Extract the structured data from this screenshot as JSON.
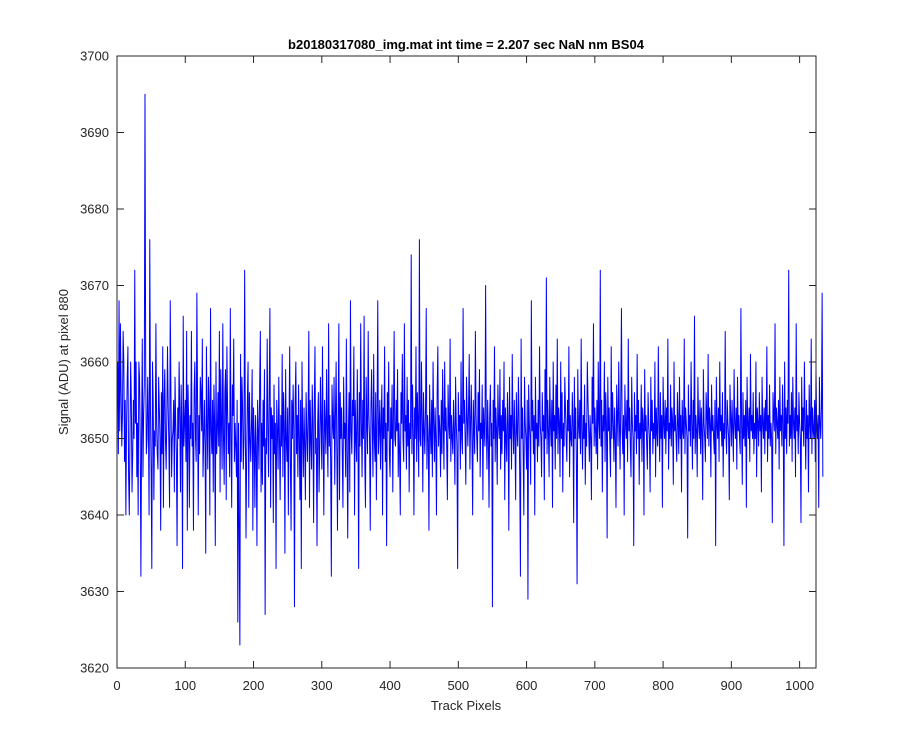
{
  "chart_data": {
    "type": "line",
    "title": "b20180317080_img.mat int time = 2.207 sec  NaN nm BS04",
    "xlabel": "Track Pixels",
    "ylabel": "Signal (ADU) at pixel 880",
    "xlim": [
      0,
      1024
    ],
    "ylim": [
      3620,
      3700
    ],
    "xticks": [
      0,
      100,
      200,
      300,
      400,
      500,
      600,
      700,
      800,
      900,
      1000
    ],
    "yticks": [
      3620,
      3630,
      3640,
      3650,
      3660,
      3670,
      3680,
      3690,
      3700
    ],
    "grid": false,
    "legend": "none",
    "series": [
      {
        "color": "#0000ff",
        "x_start": 1,
        "x_step": 1,
        "values": [
          3660,
          3648,
          3668,
          3651,
          3665,
          3656,
          3649,
          3653,
          3664,
          3660,
          3647,
          3655,
          3640,
          3652,
          3658,
          3662,
          3645,
          3640,
          3650,
          3660,
          3655,
          3643,
          3648,
          3655,
          3650,
          3672,
          3652,
          3660,
          3645,
          3652,
          3640,
          3660,
          3658,
          3650,
          3632,
          3650,
          3663,
          3645,
          3653,
          3657,
          3695,
          3660,
          3648,
          3650,
          3658,
          3652,
          3640,
          3676,
          3654,
          3646,
          3633,
          3660,
          3655,
          3642,
          3651,
          3649,
          3665,
          3652,
          3648,
          3646,
          3658,
          3654,
          3650,
          3638,
          3656,
          3648,
          3662,
          3641,
          3655,
          3659,
          3650,
          3646,
          3653,
          3662,
          3654,
          3649,
          3641,
          3668,
          3656,
          3645,
          3650,
          3651,
          3655,
          3643,
          3658,
          3652,
          3648,
          3636,
          3654,
          3650,
          3660,
          3653,
          3643,
          3657,
          3651,
          3633,
          3666,
          3649,
          3652,
          3655,
          3647,
          3664,
          3638,
          3657,
          3652,
          3641,
          3653,
          3650,
          3664,
          3649,
          3652,
          3638,
          3656,
          3660,
          3650,
          3647,
          3669,
          3655,
          3640,
          3653,
          3648,
          3658,
          3656,
          3651,
          3663,
          3645,
          3650,
          3655,
          3649,
          3635,
          3662,
          3652,
          3646,
          3658,
          3654,
          3640,
          3667,
          3651,
          3648,
          3655,
          3643,
          3657,
          3652,
          3636,
          3660,
          3648,
          3651,
          3656,
          3649,
          3664,
          3643,
          3659,
          3652,
          3646,
          3665,
          3650,
          3644,
          3656,
          3659,
          3642,
          3662,
          3654,
          3648,
          3652,
          3645,
          3667,
          3650,
          3641,
          3657,
          3653,
          3663,
          3647,
          3652,
          3649,
          3645,
          3655,
          3626,
          3652,
          3638,
          3623,
          3661,
          3647,
          3658,
          3654,
          3646,
          3650,
          3672,
          3652,
          3637,
          3648,
          3655,
          3660,
          3641,
          3656,
          3650,
          3647,
          3652,
          3659,
          3638,
          3654,
          3650,
          3641,
          3653,
          3649,
          3636,
          3655,
          3651,
          3646,
          3657,
          3664,
          3643,
          3652,
          3644,
          3655,
          3649,
          3659,
          3627,
          3650,
          3648,
          3663,
          3651,
          3645,
          3656,
          3667,
          3641,
          3654,
          3650,
          3653,
          3639,
          3657,
          3648,
          3652,
          3633,
          3655,
          3651,
          3646,
          3658,
          3650,
          3642,
          3653,
          3649,
          3661,
          3645,
          3656,
          3652,
          3635,
          3659,
          3650,
          3647,
          3654,
          3640,
          3652,
          3662,
          3647,
          3638,
          3655,
          3650,
          3657,
          3651,
          3628,
          3655,
          3660,
          3648,
          3653,
          3645,
          3657,
          3650,
          3642,
          3655,
          3633,
          3660,
          3651,
          3645,
          3654,
          3649,
          3642,
          3656,
          3651,
          3647,
          3653,
          3664,
          3641,
          3655,
          3650,
          3646,
          3657,
          3652,
          3639,
          3654,
          3662,
          3648,
          3650,
          3636,
          3652,
          3656,
          3643,
          3649,
          3658,
          3652,
          3646,
          3662,
          3650,
          3640,
          3655,
          3652,
          3648,
          3659,
          3651,
          3645,
          3665,
          3649,
          3653,
          3647,
          3632,
          3657,
          3652,
          3650,
          3658,
          3644,
          3653,
          3660,
          3649,
          3638,
          3653,
          3665,
          3642,
          3656,
          3650,
          3654,
          3648,
          3641,
          3658,
          3650,
          3652,
          3645,
          3663,
          3649,
          3637,
          3651,
          3656,
          3643,
          3668,
          3651,
          3648,
          3655,
          3653,
          3662,
          3640,
          3655,
          3650,
          3647,
          3659,
          3651,
          3633,
          3656,
          3649,
          3665,
          3652,
          3645,
          3655,
          3650,
          3666,
          3647,
          3641,
          3658,
          3652,
          3648,
          3664,
          3653,
          3650,
          3638,
          3654,
          3659,
          3651,
          3645,
          3661,
          3650,
          3647,
          3656,
          3642,
          3653,
          3668,
          3648,
          3651,
          3655,
          3646,
          3652,
          3657,
          3640,
          3654,
          3650,
          3662,
          3647,
          3652,
          3636,
          3656,
          3651,
          3660,
          3648,
          3645,
          3654,
          3650,
          3657,
          3643,
          3653,
          3664,
          3650,
          3649,
          3655,
          3651,
          3659,
          3645,
          3652,
          3648,
          3640,
          3656,
          3652,
          3661,
          3650,
          3647,
          3665,
          3651,
          3653,
          3646,
          3658,
          3649,
          3655,
          3643,
          3652,
          3650,
          3674,
          3648,
          3657,
          3651,
          3640,
          3654,
          3650,
          3662,
          3647,
          3656,
          3652,
          3645,
          3676,
          3650,
          3649,
          3660,
          3653,
          3643,
          3656,
          3651,
          3648,
          3654,
          3667,
          3646,
          3653,
          3650,
          3638,
          3657,
          3651,
          3648,
          3655,
          3645,
          3660,
          3652,
          3647,
          3654,
          3650,
          3640,
          3656,
          3662,
          3649,
          3653,
          3651,
          3645,
          3655,
          3648,
          3659,
          3652,
          3646,
          3660,
          3651,
          3654,
          3649,
          3642,
          3657,
          3652,
          3650,
          3663,
          3647,
          3653,
          3650,
          3648,
          3655,
          3651,
          3644,
          3658,
          3652,
          3649,
          3633,
          3656,
          3651,
          3653,
          3646,
          3660,
          3650,
          3648,
          3667,
          3652,
          3655,
          3650,
          3644,
          3658,
          3653,
          3649,
          3654,
          3661,
          3646,
          3652,
          3657,
          3650,
          3640,
          3655,
          3651,
          3648,
          3664,
          3653,
          3650,
          3647,
          3656,
          3651,
          3659,
          3645,
          3652,
          3650,
          3657,
          3642,
          3654,
          3651,
          3649,
          3670,
          3652,
          3646,
          3655,
          3650,
          3641,
          3653,
          3657,
          3649,
          3652,
          3628,
          3655,
          3650,
          3662,
          3647,
          3654,
          3651,
          3644,
          3657,
          3652,
          3650,
          3659,
          3646,
          3653,
          3648,
          3655,
          3651,
          3660,
          3642,
          3654,
          3650,
          3647,
          3656,
          3652,
          3638,
          3658,
          3650,
          3653,
          3646,
          3661,
          3652,
          3648,
          3655,
          3650,
          3642,
          3656,
          3651,
          3649,
          3658,
          3653,
          3645,
          3632,
          3663,
          3650,
          3654,
          3648,
          3640,
          3658,
          3652,
          3650,
          3646,
          3655,
          3629,
          3657,
          3652,
          3650,
          3644,
          3668,
          3651,
          3655,
          3648,
          3653,
          3640,
          3658,
          3650,
          3652,
          3647,
          3655,
          3649,
          3662,
          3652,
          3650,
          3645,
          3656,
          3651,
          3653,
          3642,
          3659,
          3650,
          3671,
          3648,
          3655,
          3651,
          3645,
          3658,
          3652,
          3649,
          3655,
          3641,
          3660,
          3651,
          3653,
          3646,
          3657,
          3650,
          3663,
          3648,
          3654,
          3652,
          3645,
          3660,
          3650,
          3656,
          3643,
          3652,
          3649,
          3658,
          3654,
          3650,
          3647,
          3655,
          3651,
          3662,
          3645,
          3653,
          3650,
          3649,
          3656,
          3652,
          3639,
          3658,
          3650,
          3654,
          3647,
          3631,
          3659,
          3652,
          3650,
          3655,
          3648,
          3663,
          3651,
          3646,
          3653,
          3650,
          3657,
          3644,
          3652,
          3649,
          3660,
          3655,
          3651,
          3647,
          3653,
          3650,
          3642,
          3658,
          3652,
          3665,
          3649,
          3654,
          3651,
          3648,
          3655,
          3646,
          3660,
          3652,
          3650,
          3672,
          3649,
          3655,
          3643,
          3653,
          3651,
          3660,
          3647,
          3656,
          3652,
          3637,
          3658,
          3651,
          3654,
          3649,
          3645,
          3662,
          3650,
          3656,
          3652,
          3647,
          3654,
          3650,
          3641,
          3657,
          3653,
          3649,
          3660,
          3652,
          3646,
          3655,
          3667,
          3651,
          3648,
          3653,
          3640,
          3657,
          3652,
          3650,
          3655,
          3647,
          3663,
          3651,
          3654,
          3649,
          3645,
          3658,
          3652,
          3650,
          3636,
          3656,
          3651,
          3653,
          3648,
          3661,
          3650,
          3655,
          3644,
          3652,
          3650,
          3657,
          3647,
          3654,
          3652,
          3640,
          3659,
          3651,
          3653,
          3649,
          3646,
          3656,
          3652,
          3650,
          3643,
          3658,
          3651,
          3655,
          3648,
          3652,
          3650,
          3660,
          3645,
          3654,
          3651,
          3649,
          3662,
          3652,
          3647,
          3656,
          3650,
          3653,
          3641,
          3658,
          3652,
          3650,
          3655,
          3648,
          3654,
          3651,
          3663,
          3646,
          3652,
          3650,
          3657,
          3649,
          3654,
          3652,
          3644,
          3660,
          3651,
          3653,
          3650,
          3647,
          3656,
          3652,
          3648,
          3658,
          3650,
          3653,
          3643,
          3655,
          3651,
          3650,
          3663,
          3648,
          3654,
          3652,
          3650,
          3637,
          3657,
          3651,
          3653,
          3649,
          3660,
          3652,
          3646,
          3655,
          3650,
          3666,
          3648,
          3653,
          3651,
          3645,
          3658,
          3652,
          3650,
          3655,
          3648,
          3654,
          3651,
          3642,
          3659,
          3652,
          3650,
          3647,
          3656,
          3653,
          3650,
          3661,
          3649,
          3654,
          3652,
          3645,
          3657,
          3651,
          3653,
          3650,
          3648,
          3655,
          3636,
          3658,
          3652,
          3650,
          3654,
          3647,
          3660,
          3651,
          3653,
          3649,
          3656,
          3645,
          3652,
          3650,
          3664,
          3651,
          3648,
          3655,
          3652,
          3650,
          3642,
          3657,
          3653,
          3649,
          3655,
          3651,
          3647,
          3659,
          3652,
          3650,
          3654,
          3646,
          3658,
          3651,
          3653,
          3650,
          3648,
          3667,
          3652,
          3644,
          3656,
          3650,
          3653,
          3649,
          3655,
          3641,
          3658,
          3652,
          3650,
          3654,
          3647,
          3661,
          3651,
          3653,
          3650,
          3656,
          3648,
          3652,
          3650,
          3660,
          3645,
          3654,
          3652,
          3649,
          3656,
          3651,
          3653,
          3643,
          3658,
          3652,
          3650,
          3654,
          3648,
          3655,
          3651,
          3662,
          3647,
          3653,
          3650,
          3657,
          3649,
          3652,
          3650,
          3639,
          3656,
          3653,
          3651,
          3665,
          3648,
          3654,
          3652,
          3650,
          3655,
          3646,
          3658,
          3651,
          3653,
          3649,
          3657,
          3652,
          3636,
          3660,
          3650,
          3654,
          3648,
          3655,
          3652,
          3672,
          3649,
          3653,
          3650,
          3656,
          3647,
          3658,
          3652,
          3650,
          3654,
          3645,
          3665,
          3651,
          3653,
          3648,
          3656,
          3652,
          3650,
          3639,
          3658,
          3651,
          3654,
          3649,
          3660,
          3652,
          3646,
          3655,
          3650,
          3653,
          3643,
          3657,
          3652,
          3650,
          3663,
          3648,
          3654,
          3651,
          3650,
          3655,
          3647,
          3659,
          3652,
          3650,
          3653,
          3641,
          3658,
          3652,
          3650,
          3654,
          3669,
          3645
        ]
      }
    ]
  }
}
